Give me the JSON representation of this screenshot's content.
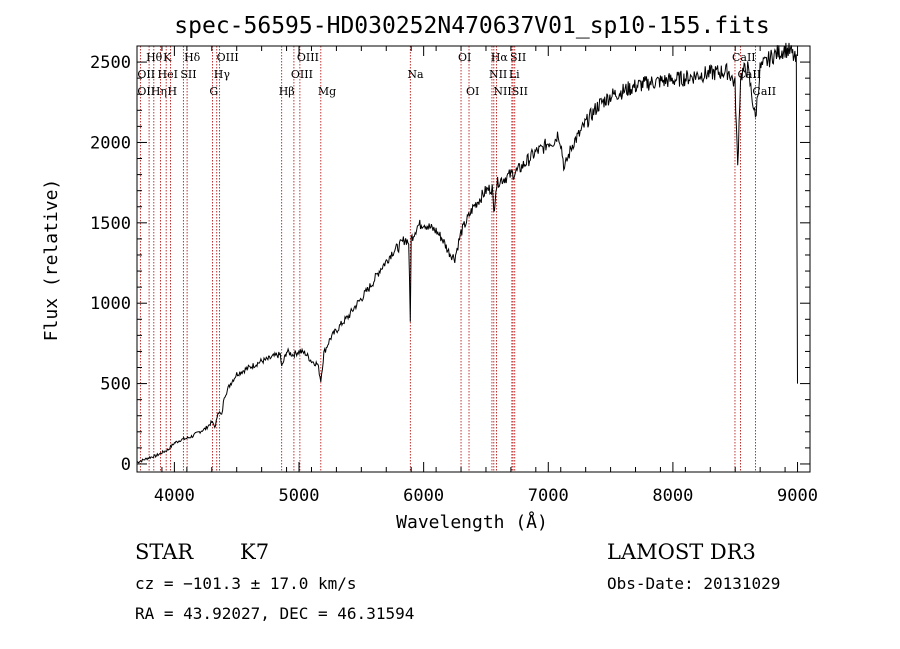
{
  "chart_data": {
    "type": "line",
    "title": "spec-56595-HD030252N470637V01_sp10-155.fits",
    "xlabel": "Wavelength (Å)",
    "ylabel": "Flux (relative)",
    "xlim": [
      3700,
      9100
    ],
    "ylim": [
      -50,
      2600
    ],
    "x_ticks": [
      4000,
      5000,
      6000,
      7000,
      8000,
      9000
    ],
    "y_ticks": [
      0,
      500,
      1000,
      1500,
      2000,
      2500
    ],
    "grid": false,
    "series": [
      {
        "name": "Flux",
        "x": [
          3700,
          3750,
          3800,
          3850,
          3900,
          3950,
          4000,
          4050,
          4100,
          4150,
          4200,
          4250,
          4300,
          4330,
          4350,
          4380,
          4400,
          4450,
          4500,
          4550,
          4600,
          4650,
          4700,
          4750,
          4800,
          4850,
          4861,
          4900,
          4950,
          5000,
          5050,
          5100,
          5150,
          5175,
          5200,
          5250,
          5300,
          5350,
          5400,
          5450,
          5500,
          5550,
          5600,
          5650,
          5700,
          5750,
          5800,
          5850,
          5880,
          5893,
          5900,
          5950,
          6000,
          6050,
          6100,
          6150,
          6200,
          6250,
          6300,
          6350,
          6400,
          6450,
          6500,
          6550,
          6563,
          6580,
          6600,
          6650,
          6700,
          6750,
          6800,
          6850,
          6900,
          6950,
          7000,
          7050,
          7080,
          7100,
          7130,
          7150,
          7200,
          7250,
          7300,
          7400,
          7500,
          7600,
          7700,
          7800,
          7900,
          8000,
          8100,
          8200,
          8300,
          8400,
          8450,
          8498,
          8520,
          8542,
          8560,
          8600,
          8662,
          8700,
          8750,
          8800,
          8850,
          8900,
          8950,
          8990,
          9000
        ],
        "y": [
          10,
          25,
          40,
          50,
          70,
          90,
          130,
          150,
          160,
          175,
          200,
          220,
          260,
          230,
          330,
          300,
          420,
          500,
          560,
          580,
          600,
          620,
          640,
          650,
          670,
          680,
          600,
          700,
          680,
          700,
          690,
          640,
          620,
          520,
          690,
          780,
          830,
          880,
          920,
          980,
          1030,
          1080,
          1140,
          1210,
          1260,
          1320,
          1350,
          1400,
          1380,
          880,
          1400,
          1480,
          1500,
          1470,
          1450,
          1400,
          1320,
          1280,
          1440,
          1520,
          1600,
          1650,
          1700,
          1720,
          1560,
          1720,
          1760,
          1780,
          1800,
          1820,
          1860,
          1900,
          1940,
          1960,
          2000,
          2010,
          2060,
          2000,
          1830,
          1890,
          2000,
          2050,
          2120,
          2230,
          2290,
          2320,
          2350,
          2370,
          2380,
          2390,
          2400,
          2420,
          2430,
          2440,
          2440,
          2360,
          1850,
          2400,
          2440,
          2460,
          2150,
          2460,
          2500,
          2540,
          2560,
          2580,
          2560,
          2500,
          500
        ]
      }
    ],
    "lines": [
      {
        "name": "Hθ",
        "wl": 3797,
        "row": 0
      },
      {
        "name": "OII",
        "wl": 3727,
        "row": 1
      },
      {
        "name": "OII",
        "wl": 3727,
        "row": 2
      },
      {
        "name": "Hη",
        "wl": 3835,
        "row": 2
      },
      {
        "name": "HeI",
        "wl": 3889,
        "row": 1
      },
      {
        "name": "K",
        "wl": 3934,
        "row": 0
      },
      {
        "name": "SII",
        "wl": 4072,
        "row": 1
      },
      {
        "name": "H",
        "wl": 3969,
        "row": 2
      },
      {
        "name": "Hδ",
        "wl": 4102,
        "row": 0
      },
      {
        "name": "OIII",
        "wl": 4363,
        "row": 0
      },
      {
        "name": "Hγ",
        "wl": 4340,
        "row": 1
      },
      {
        "name": "G",
        "wl": 4305,
        "row": 2
      },
      {
        "name": "Hβ",
        "wl": 4861,
        "row": 2
      },
      {
        "name": "OIII",
        "wl": 5007,
        "row": 0
      },
      {
        "name": "OIII",
        "wl": 4959,
        "row": 1
      },
      {
        "name": "Mg",
        "wl": 5175,
        "row": 2
      },
      {
        "name": "Na",
        "wl": 5893,
        "row": 1
      },
      {
        "name": "OI",
        "wl": 6300,
        "row": 0
      },
      {
        "name": "OI",
        "wl": 6364,
        "row": 2
      },
      {
        "name": "Hα",
        "wl": 6563,
        "row": 0
      },
      {
        "name": "NII",
        "wl": 6548,
        "row": 1
      },
      {
        "name": "NII",
        "wl": 6584,
        "row": 2
      },
      {
        "name": "SII",
        "wl": 6717,
        "row": 0
      },
      {
        "name": "Li",
        "wl": 6708,
        "row": 1
      },
      {
        "name": "SII",
        "wl": 6731,
        "row": 2
      },
      {
        "name": "CaII",
        "wl": 8498,
        "row": 0
      },
      {
        "name": "CaII",
        "wl": 8542,
        "row": 1
      },
      {
        "name": "CaII",
        "wl": 8662,
        "row": 2
      }
    ]
  },
  "info": {
    "object_class": "STAR",
    "subclass": "K7",
    "survey": "LAMOST DR3",
    "cz": "cz = −101.3 ± 17.0 km/s",
    "obs_date": "Obs-Date: 20131029",
    "radec": "RA =  43.92027, DEC =  46.31594"
  }
}
